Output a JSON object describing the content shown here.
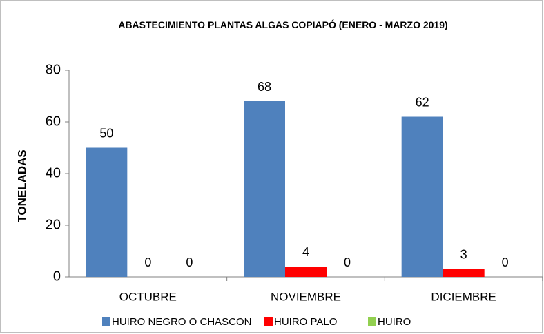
{
  "chart_data": {
    "type": "bar",
    "title": "ABASTECIMIENTO PLANTAS ALGAS  COPIAPÓ (ENERO - MARZO 2019)",
    "ylabel": "TONELADAS",
    "categories": [
      "OCTUBRE",
      "NOVIEMBRE",
      "DICIEMBRE"
    ],
    "series": [
      {
        "name": "HUIRO NEGRO O CHASCON",
        "color": "#4f81bd",
        "values": [
          50,
          68,
          62
        ]
      },
      {
        "name": "HUIRO PALO",
        "color": "#ff0000",
        "values": [
          0,
          4,
          3
        ]
      },
      {
        "name": "HUIRO",
        "color": "#92d050",
        "values": [
          0,
          0,
          0
        ]
      }
    ],
    "ylim": [
      0,
      80
    ],
    "yticks": [
      0,
      20,
      40,
      60,
      80
    ],
    "grid": false,
    "legend": "bottom"
  }
}
